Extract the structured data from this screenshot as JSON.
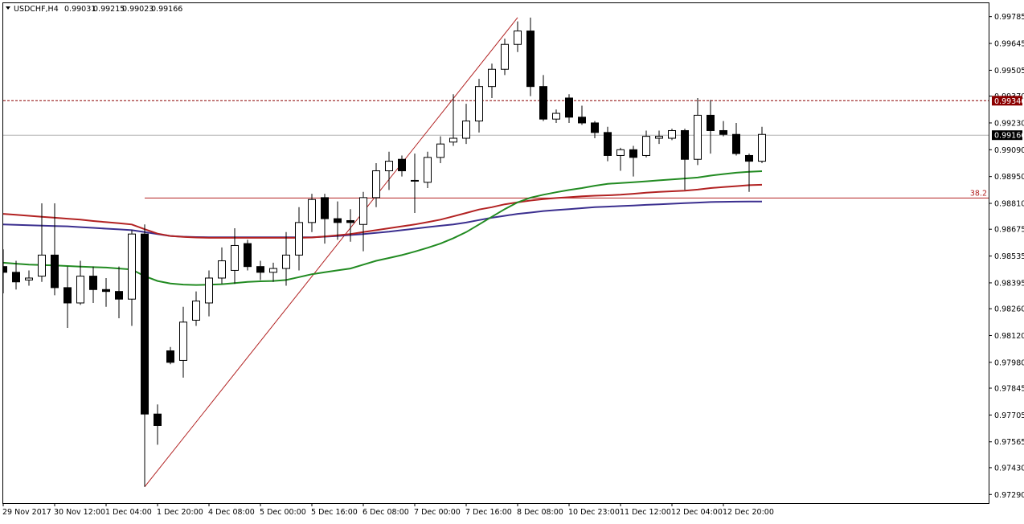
{
  "header": {
    "symbol": "USDCHF,H4",
    "open": "0.99031",
    "high": "0.99215",
    "low": "0.99023",
    "close": "0.99166"
  },
  "colors": {
    "background": "#ffffff",
    "frame": "#000000",
    "candle": "#000000",
    "ma_green": "#228b22",
    "ma_red": "#b22222",
    "ma_blue": "#3b2f8f",
    "fib_line": "#b22222",
    "resistance_line": "#8b0000",
    "resistance_tag_bg": "#8b0000",
    "current_price_line": "#b0b0b0"
  },
  "chart_data": {
    "type": "candlestick",
    "symbol": "USDCHF",
    "timeframe": "H4",
    "ylim": [
      0.97245,
      0.99855
    ],
    "y_ticks": [
      "0.99785",
      "0.99645",
      "0.99505",
      "0.99370",
      "0.99230",
      "0.99090",
      "0.98950",
      "0.98810",
      "0.98675",
      "0.98535",
      "0.98395",
      "0.98260",
      "0.98120",
      "0.97980",
      "0.97845",
      "0.97705",
      "0.97565",
      "0.97430",
      "0.97290"
    ],
    "x_ticks": [
      "29 Nov 2017",
      "30 Nov 12:00",
      "1 Dec 04:00",
      "1 Dec 20:00",
      "4 Dec 08:00",
      "5 Dec 00:00",
      "5 Dec 16:00",
      "6 Dec 08:00",
      "7 Dec 00:00",
      "7 Dec 16:00",
      "8 Dec 08:00",
      "10 Dec 23:00",
      "11 Dec 12:00",
      "12 Dec 04:00",
      "12 Dec 20:00"
    ],
    "candles": [
      {
        "o": 0.9848,
        "h": 0.9857,
        "l": 0.9834,
        "c": 0.9845
      },
      {
        "o": 0.9845,
        "h": 0.9851,
        "l": 0.9836,
        "c": 0.984
      },
      {
        "o": 0.9841,
        "h": 0.9846,
        "l": 0.9838,
        "c": 0.9842
      },
      {
        "o": 0.9843,
        "h": 0.9881,
        "l": 0.984,
        "c": 0.9854
      },
      {
        "o": 0.9854,
        "h": 0.9881,
        "l": 0.9833,
        "c": 0.9837
      },
      {
        "o": 0.9837,
        "h": 0.9848,
        "l": 0.9816,
        "c": 0.9829
      },
      {
        "o": 0.9829,
        "h": 0.9851,
        "l": 0.9828,
        "c": 0.9843
      },
      {
        "o": 0.9843,
        "h": 0.9848,
        "l": 0.9829,
        "c": 0.9836
      },
      {
        "o": 0.9836,
        "h": 0.9842,
        "l": 0.9827,
        "c": 0.9835
      },
      {
        "o": 0.9835,
        "h": 0.9848,
        "l": 0.9821,
        "c": 0.9831
      },
      {
        "o": 0.9831,
        "h": 0.9867,
        "l": 0.9817,
        "c": 0.9865
      },
      {
        "o": 0.9865,
        "h": 0.987,
        "l": 0.9733,
        "c": 0.9771
      },
      {
        "o": 0.9771,
        "h": 0.9776,
        "l": 0.9755,
        "c": 0.9765
      },
      {
        "o": 0.9804,
        "h": 0.9806,
        "l": 0.9797,
        "c": 0.9798
      },
      {
        "o": 0.9799,
        "h": 0.9827,
        "l": 0.979,
        "c": 0.9819
      },
      {
        "o": 0.982,
        "h": 0.9835,
        "l": 0.9817,
        "c": 0.983
      },
      {
        "o": 0.9829,
        "h": 0.9846,
        "l": 0.9822,
        "c": 0.9842
      },
      {
        "o": 0.9842,
        "h": 0.9858,
        "l": 0.9839,
        "c": 0.9851
      },
      {
        "o": 0.9846,
        "h": 0.9868,
        "l": 0.9839,
        "c": 0.9859
      },
      {
        "o": 0.986,
        "h": 0.9862,
        "l": 0.9846,
        "c": 0.9848
      },
      {
        "o": 0.9848,
        "h": 0.9851,
        "l": 0.9841,
        "c": 0.9845
      },
      {
        "o": 0.9845,
        "h": 0.985,
        "l": 0.984,
        "c": 0.9847
      },
      {
        "o": 0.9847,
        "h": 0.9866,
        "l": 0.9838,
        "c": 0.9854
      },
      {
        "o": 0.9854,
        "h": 0.9879,
        "l": 0.9846,
        "c": 0.9871
      },
      {
        "o": 0.9871,
        "h": 0.9886,
        "l": 0.9866,
        "c": 0.9883
      },
      {
        "o": 0.9884,
        "h": 0.9886,
        "l": 0.986,
        "c": 0.9873
      },
      {
        "o": 0.9873,
        "h": 0.9882,
        "l": 0.9862,
        "c": 0.9871
      },
      {
        "o": 0.9872,
        "h": 0.9878,
        "l": 0.9861,
        "c": 0.9871
      },
      {
        "o": 0.987,
        "h": 0.9887,
        "l": 0.9856,
        "c": 0.9884
      },
      {
        "o": 0.9884,
        "h": 0.9902,
        "l": 0.9879,
        "c": 0.9898
      },
      {
        "o": 0.9898,
        "h": 0.9908,
        "l": 0.9888,
        "c": 0.9903
      },
      {
        "o": 0.9904,
        "h": 0.9906,
        "l": 0.9895,
        "c": 0.9898
      },
      {
        "o": 0.9893,
        "h": 0.9907,
        "l": 0.9876,
        "c": 0.9893
      },
      {
        "o": 0.9892,
        "h": 0.9908,
        "l": 0.9889,
        "c": 0.9905
      },
      {
        "o": 0.9905,
        "h": 0.9916,
        "l": 0.9902,
        "c": 0.9912
      },
      {
        "o": 0.9913,
        "h": 0.9938,
        "l": 0.9911,
        "c": 0.9915
      },
      {
        "o": 0.9915,
        "h": 0.9933,
        "l": 0.9912,
        "c": 0.9924
      },
      {
        "o": 0.9924,
        "h": 0.9946,
        "l": 0.9918,
        "c": 0.9942
      },
      {
        "o": 0.9942,
        "h": 0.9954,
        "l": 0.9936,
        "c": 0.9951
      },
      {
        "o": 0.9951,
        "h": 0.9967,
        "l": 0.9948,
        "c": 0.9964
      },
      {
        "o": 0.9964,
        "h": 0.9976,
        "l": 0.996,
        "c": 0.9971
      },
      {
        "o": 0.9971,
        "h": 0.9978,
        "l": 0.9937,
        "c": 0.9942
      },
      {
        "o": 0.9942,
        "h": 0.9948,
        "l": 0.9924,
        "c": 0.9925
      },
      {
        "o": 0.9925,
        "h": 0.993,
        "l": 0.9923,
        "c": 0.9928
      },
      {
        "o": 0.9936,
        "h": 0.9938,
        "l": 0.9923,
        "c": 0.9926
      },
      {
        "o": 0.9926,
        "h": 0.9932,
        "l": 0.9922,
        "c": 0.9923
      },
      {
        "o": 0.9923,
        "h": 0.9924,
        "l": 0.9915,
        "c": 0.9918
      },
      {
        "o": 0.9918,
        "h": 0.9921,
        "l": 0.9903,
        "c": 0.9906
      },
      {
        "o": 0.9906,
        "h": 0.991,
        "l": 0.9898,
        "c": 0.9909
      },
      {
        "o": 0.9909,
        "h": 0.9911,
        "l": 0.9895,
        "c": 0.9905
      },
      {
        "o": 0.9906,
        "h": 0.9919,
        "l": 0.9905,
        "c": 0.9916
      },
      {
        "o": 0.9915,
        "h": 0.9919,
        "l": 0.9912,
        "c": 0.9916
      },
      {
        "o": 0.9915,
        "h": 0.992,
        "l": 0.9914,
        "c": 0.9919
      },
      {
        "o": 0.9919,
        "h": 0.992,
        "l": 0.9888,
        "c": 0.9904
      },
      {
        "o": 0.9904,
        "h": 0.9936,
        "l": 0.9901,
        "c": 0.9927
      },
      {
        "o": 0.9927,
        "h": 0.9935,
        "l": 0.9907,
        "c": 0.9919
      },
      {
        "o": 0.9919,
        "h": 0.9924,
        "l": 0.9916,
        "c": 0.9917
      },
      {
        "o": 0.9917,
        "h": 0.9923,
        "l": 0.9906,
        "c": 0.9907
      },
      {
        "o": 0.9906,
        "h": 0.9907,
        "l": 0.9887,
        "c": 0.9903
      },
      {
        "o": 0.9903,
        "h": 0.9921,
        "l": 0.9902,
        "c": 0.9917
      }
    ],
    "ma_green": [
      0.985,
      0.98495,
      0.9849,
      0.98488,
      0.98486,
      0.98483,
      0.9848,
      0.98477,
      0.98475,
      0.9847,
      0.98465,
      0.9843,
      0.98405,
      0.98392,
      0.98386,
      0.98384,
      0.98385,
      0.98388,
      0.98394,
      0.984,
      0.98403,
      0.98405,
      0.9841,
      0.98425,
      0.9844,
      0.9845,
      0.9846,
      0.9847,
      0.9849,
      0.9851,
      0.98525,
      0.9854,
      0.98558,
      0.98578,
      0.986,
      0.98628,
      0.9866,
      0.987,
      0.9874,
      0.9878,
      0.98815,
      0.9884,
      0.98855,
      0.98868,
      0.9888,
      0.9889,
      0.98902,
      0.98912,
      0.98916,
      0.9892,
      0.98925,
      0.9893,
      0.98935,
      0.9894,
      0.98945,
      0.98955,
      0.98963,
      0.9897,
      0.98975,
      0.98978
    ],
    "ma_red": [
      0.98755,
      0.9875,
      0.98745,
      0.9874,
      0.98735,
      0.9873,
      0.98725,
      0.98718,
      0.98712,
      0.98706,
      0.987,
      0.98675,
      0.98652,
      0.9864,
      0.98635,
      0.98632,
      0.9863,
      0.9863,
      0.9863,
      0.9863,
      0.9863,
      0.9863,
      0.9863,
      0.9863,
      0.98632,
      0.98637,
      0.98643,
      0.9865,
      0.9866,
      0.9867,
      0.9868,
      0.9869,
      0.987,
      0.98712,
      0.98725,
      0.98742,
      0.9876,
      0.98778,
      0.9879,
      0.98805,
      0.98815,
      0.98825,
      0.98832,
      0.98838,
      0.98842,
      0.98847,
      0.9885,
      0.98852,
      0.98855,
      0.9886,
      0.98866,
      0.9887,
      0.98873,
      0.98876,
      0.98882,
      0.9889,
      0.98895,
      0.989,
      0.98905,
      0.98907
    ],
    "ma_blue": [
      0.987,
      0.98698,
      0.98696,
      0.98694,
      0.98692,
      0.9869,
      0.98686,
      0.98682,
      0.98678,
      0.98674,
      0.9867,
      0.9866,
      0.9865,
      0.9864,
      0.98636,
      0.98634,
      0.98633,
      0.98633,
      0.98633,
      0.98633,
      0.98633,
      0.98633,
      0.98633,
      0.98633,
      0.98633,
      0.98636,
      0.9864,
      0.98645,
      0.9865,
      0.98656,
      0.98662,
      0.9867,
      0.98678,
      0.98686,
      0.98693,
      0.987,
      0.9871,
      0.98723,
      0.98735,
      0.98745,
      0.98755,
      0.98762,
      0.9877,
      0.98775,
      0.9878,
      0.98785,
      0.9879,
      0.98793,
      0.98796,
      0.98799,
      0.98802,
      0.98805,
      0.98808,
      0.98811,
      0.98814,
      0.98817,
      0.98818,
      0.98819,
      0.9882,
      0.9882
    ],
    "fib_anchor_low": {
      "candle": 11,
      "price": 0.9733
    },
    "fib_anchor_high": {
      "candle": 40,
      "price": 0.9978
    },
    "fib_level": {
      "label": "38.2",
      "price": 0.98838
    },
    "resistance_line": {
      "price": 0.99346,
      "label": "0.99346"
    },
    "current_price": {
      "price": 0.99166,
      "label": "0.99166"
    },
    "grid": false
  }
}
